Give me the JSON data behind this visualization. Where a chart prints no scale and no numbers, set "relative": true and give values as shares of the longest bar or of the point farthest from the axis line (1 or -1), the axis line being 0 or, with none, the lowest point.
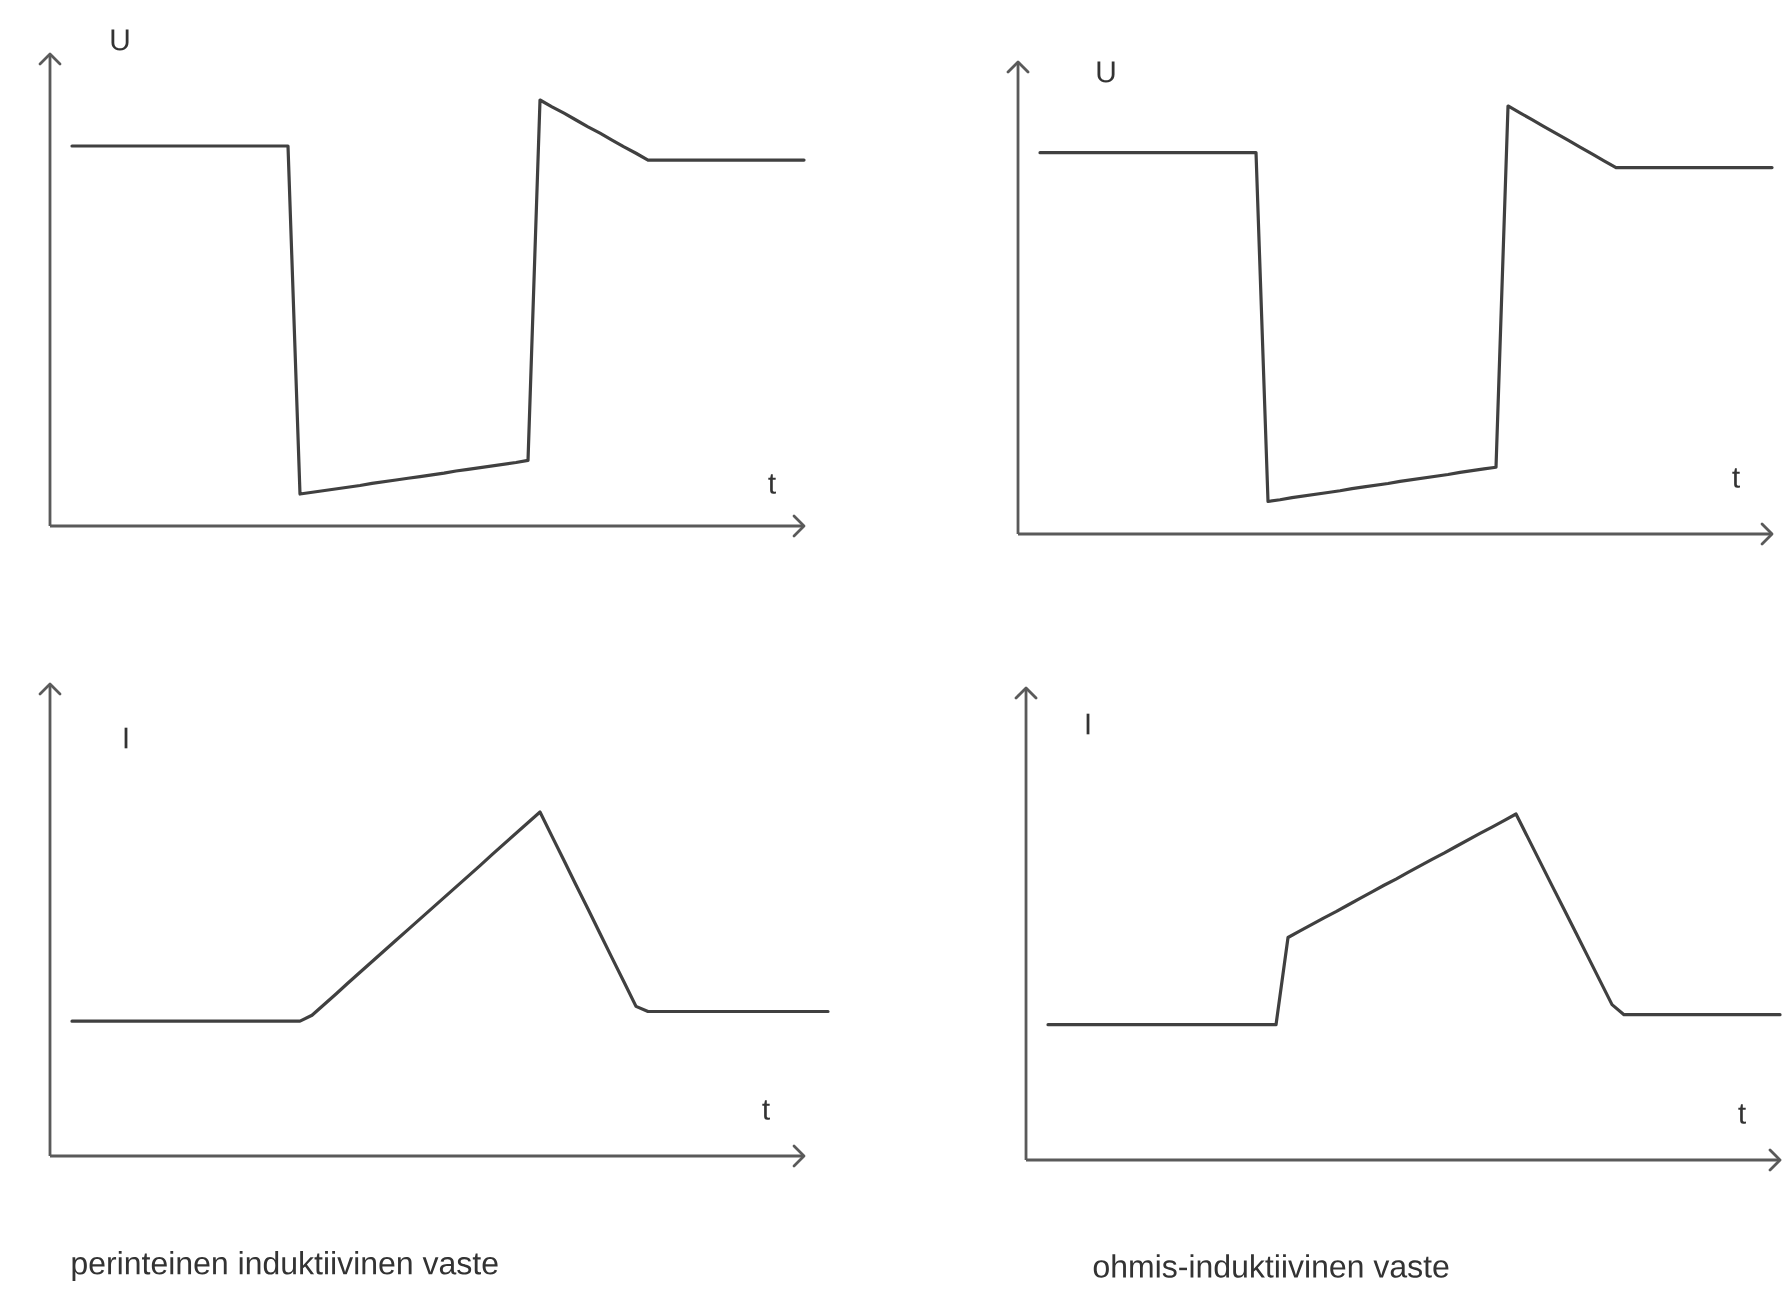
{
  "chart_data": [
    {
      "type": "line",
      "relative": true,
      "xlabel": "t",
      "ylabel": "U",
      "categories": [
        null,
        null,
        null,
        null,
        null,
        null,
        null,
        null,
        null,
        null,
        null,
        null,
        null,
        null,
        null,
        null,
        null,
        null,
        null,
        null,
        null,
        null,
        null,
        null,
        null,
        null,
        null,
        null,
        null,
        null,
        null,
        null,
        null,
        null,
        null,
        null,
        null,
        null,
        null,
        null,
        null,
        null,
        null,
        null,
        null,
        null,
        null,
        null,
        null,
        null,
        null,
        null,
        null,
        null,
        null,
        null,
        null,
        null,
        null,
        null,
        null,
        null
      ],
      "series": [
        {
          "color": "#404040",
          "values": [
            0.892,
            0.892,
            0.892,
            0.892,
            0.892,
            0.892,
            0.892,
            0.892,
            0.892,
            0.892,
            0.892,
            0.892,
            0.892,
            0.892,
            0.892,
            0.892,
            0.892,
            0.892,
            0.892,
            0.075,
            0.079,
            0.083,
            0.087,
            0.091,
            0.095,
            0.1,
            0.104,
            0.108,
            0.112,
            0.116,
            0.12,
            0.124,
            0.129,
            0.133,
            0.137,
            0.141,
            0.145,
            0.149,
            0.154,
            1,
            0.984,
            0.969,
            0.953,
            0.937,
            0.922,
            0.906,
            0.89,
            0.875,
            0.859,
            0.859,
            0.859,
            0.859,
            0.859,
            0.859,
            0.859,
            0.859,
            0.859,
            0.859,
            0.859,
            0.859,
            0.859,
            0.859
          ]
        }
      ]
    },
    {
      "type": "line",
      "relative": true,
      "xlabel": "t",
      "ylabel": "U",
      "categories": [
        null,
        null,
        null,
        null,
        null,
        null,
        null,
        null,
        null,
        null,
        null,
        null,
        null,
        null,
        null,
        null,
        null,
        null,
        null,
        null,
        null,
        null,
        null,
        null,
        null,
        null,
        null,
        null,
        null,
        null,
        null,
        null,
        null,
        null,
        null,
        null,
        null,
        null,
        null,
        null,
        null,
        null,
        null,
        null,
        null,
        null,
        null,
        null,
        null,
        null,
        null,
        null,
        null,
        null,
        null,
        null,
        null,
        null,
        null,
        null,
        null,
        null
      ],
      "series": [
        {
          "color": "#404040",
          "values": [
            0.891,
            0.891,
            0.891,
            0.891,
            0.891,
            0.891,
            0.891,
            0.891,
            0.891,
            0.891,
            0.891,
            0.891,
            0.891,
            0.891,
            0.891,
            0.891,
            0.891,
            0.891,
            0.891,
            0.076,
            0.08,
            0.085,
            0.089,
            0.093,
            0.097,
            0.101,
            0.106,
            0.11,
            0.114,
            0.118,
            0.123,
            0.127,
            0.131,
            0.135,
            0.139,
            0.144,
            0.148,
            0.152,
            0.156,
            1,
            0.984,
            0.968,
            0.952,
            0.936,
            0.92,
            0.904,
            0.888,
            0.872,
            0.856,
            0.856,
            0.856,
            0.856,
            0.856,
            0.856,
            0.856,
            0.856,
            0.856,
            0.856,
            0.856,
            0.856,
            0.856,
            0.856
          ]
        }
      ]
    },
    {
      "type": "line",
      "relative": true,
      "xlabel": "t",
      "ylabel": "I",
      "categories": [
        null,
        null,
        null,
        null,
        null,
        null,
        null,
        null,
        null,
        null,
        null,
        null,
        null,
        null,
        null,
        null,
        null,
        null,
        null,
        null,
        null,
        null,
        null,
        null,
        null,
        null,
        null,
        null,
        null,
        null,
        null,
        null,
        null,
        null,
        null,
        null,
        null,
        null,
        null,
        null,
        null,
        null,
        null,
        null,
        null,
        null,
        null,
        null,
        null,
        null,
        null,
        null,
        null,
        null,
        null,
        null,
        null,
        null,
        null,
        null,
        null,
        null,
        null,
        null
      ],
      "series": [
        {
          "color": "#404040",
          "values": [
            0.392,
            0.392,
            0.392,
            0.392,
            0.392,
            0.392,
            0.392,
            0.392,
            0.392,
            0.392,
            0.392,
            0.392,
            0.392,
            0.392,
            0.392,
            0.392,
            0.392,
            0.392,
            0.392,
            0.392,
            0.409,
            0.44,
            0.471,
            0.503,
            0.534,
            0.565,
            0.596,
            0.627,
            0.658,
            0.689,
            0.72,
            0.751,
            0.782,
            0.813,
            0.844,
            0.876,
            0.907,
            0.938,
            0.969,
            1,
            0.929,
            0.859,
            0.788,
            0.718,
            0.647,
            0.576,
            0.506,
            0.435,
            0.42,
            0.42,
            0.42,
            0.42,
            0.42,
            0.42,
            0.42,
            0.42,
            0.42,
            0.42,
            0.42,
            0.42,
            0.42,
            0.42,
            0.42,
            0.42
          ]
        }
      ],
      "annotations": [
        "perinteinen induktiivinen vaste"
      ]
    },
    {
      "type": "line",
      "relative": true,
      "xlabel": "t",
      "ylabel": "I",
      "categories": [
        null,
        null,
        null,
        null,
        null,
        null,
        null,
        null,
        null,
        null,
        null,
        null,
        null,
        null,
        null,
        null,
        null,
        null,
        null,
        null,
        null,
        null,
        null,
        null,
        null,
        null,
        null,
        null,
        null,
        null,
        null,
        null,
        null,
        null,
        null,
        null,
        null,
        null,
        null,
        null,
        null,
        null,
        null,
        null,
        null,
        null,
        null,
        null,
        null,
        null,
        null,
        null,
        null,
        null,
        null,
        null,
        null,
        null,
        null,
        null,
        null,
        null
      ],
      "series": [
        {
          "color": "#404040",
          "values": [
            0.391,
            0.391,
            0.391,
            0.391,
            0.391,
            0.391,
            0.391,
            0.391,
            0.391,
            0.391,
            0.391,
            0.391,
            0.391,
            0.391,
            0.391,
            0.391,
            0.391,
            0.391,
            0.391,
            0.391,
            0.643,
            0.662,
            0.681,
            0.7,
            0.718,
            0.737,
            0.756,
            0.775,
            0.794,
            0.812,
            0.831,
            0.85,
            0.869,
            0.887,
            0.906,
            0.925,
            0.944,
            0.962,
            0.981,
            1,
            0.931,
            0.862,
            0.793,
            0.725,
            0.656,
            0.587,
            0.518,
            0.449,
            0.42,
            0.42,
            0.42,
            0.42,
            0.42,
            0.42,
            0.42,
            0.42,
            0.42,
            0.42,
            0.42,
            0.42,
            0.42,
            0.42
          ]
        }
      ],
      "annotations": [
        "ohmis-induktiivinen vaste"
      ]
    }
  ]
}
